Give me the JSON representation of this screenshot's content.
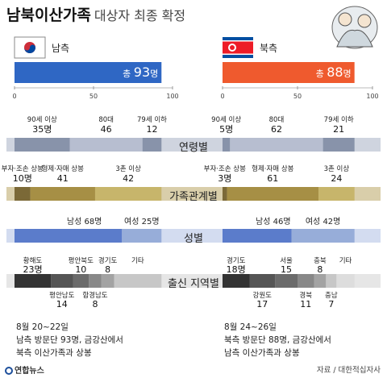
{
  "header": {
    "title_main": "남북이산가족",
    "title_sub": "대상자 최종 확정"
  },
  "chart_data": {
    "type": "bar",
    "axis": {
      "ticks": [
        "0",
        "50",
        "100"
      ],
      "xlim": [
        0,
        100
      ]
    },
    "sides": [
      {
        "key": "south",
        "name": "남측",
        "total_label": "총",
        "total": 93,
        "total_unit": "명",
        "color": "#2f67c4"
      },
      {
        "key": "north",
        "name": "북측",
        "total_label": "총",
        "total": 88,
        "total_unit": "명",
        "color": "#ef5a2e"
      }
    ],
    "sections": [
      {
        "name": "연령별",
        "south": [
          {
            "label": "90세 이상",
            "value": "35명"
          },
          {
            "label": "80대",
            "value": "46"
          },
          {
            "label": "79세 이하",
            "value": "12"
          }
        ],
        "north": [
          {
            "label": "90세 이상",
            "value": "5명"
          },
          {
            "label": "80대",
            "value": "62"
          },
          {
            "label": "79세 이하",
            "value": "21"
          }
        ]
      },
      {
        "name": "가족관계별",
        "south": [
          {
            "label": "부자·조손 상봉",
            "value": "10명"
          },
          {
            "label": "형제·자매 상봉",
            "value": "41"
          },
          {
            "label": "3촌 이상",
            "value": "42"
          }
        ],
        "north": [
          {
            "label": "부자·조손 상봉",
            "value": "3명"
          },
          {
            "label": "형제·자매 상봉",
            "value": "61"
          },
          {
            "label": "3촌 이상",
            "value": "24"
          }
        ]
      },
      {
        "name": "성별",
        "south": [
          {
            "label": "남성",
            "value": "68명"
          },
          {
            "label": "여성",
            "value": "25명"
          }
        ],
        "north": [
          {
            "label": "남성",
            "value": "46명"
          },
          {
            "label": "여성",
            "value": "42명"
          }
        ]
      },
      {
        "name": "출신 지역별",
        "south": [
          {
            "label": "황해도",
            "value": "23명"
          },
          {
            "label": "평안남도",
            "value": "14"
          },
          {
            "label": "평안북도",
            "value": "10"
          },
          {
            "label": "함경남도",
            "value": "8"
          },
          {
            "label": "경기도",
            "value": "8"
          },
          {
            "label": "기타",
            "value": ""
          }
        ],
        "north": [
          {
            "label": "경기도",
            "value": "18명"
          },
          {
            "label": "강원도",
            "value": "17"
          },
          {
            "label": "서울",
            "value": "15"
          },
          {
            "label": "경북",
            "value": "11"
          },
          {
            "label": "충북",
            "value": "8"
          },
          {
            "label": "충남",
            "value": "7"
          },
          {
            "label": "기타",
            "value": ""
          }
        ]
      }
    ]
  },
  "south_notes": {
    "date": "8월 20~22일",
    "line1": "남측 방문단 93명, 금강산에서",
    "line2": "북측 이산가족과 상봉"
  },
  "north_notes": {
    "date": "8월 24~26일",
    "line1": "북측 방문단 88명, 금강산에서",
    "line2": "남측 이산가족과 상봉"
  },
  "footer": {
    "source": "자료 / 대한적십자사",
    "logo": "연합뉴스"
  }
}
